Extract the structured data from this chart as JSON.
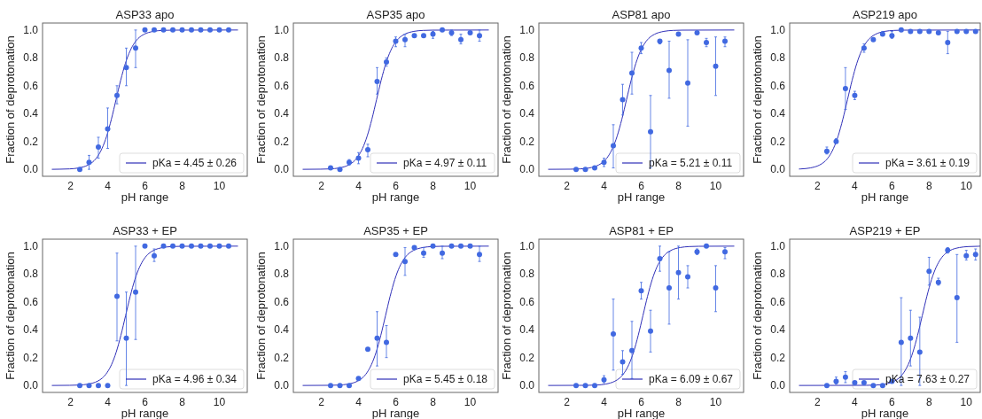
{
  "chart_data": [
    {
      "type": "scatter",
      "title": "ASP33 apo",
      "xlabel": "pH range",
      "ylabel": "Fraction of deprotonation",
      "xlim": [
        0.5,
        11.5
      ],
      "ylim": [
        -0.05,
        1.05
      ],
      "xticks": [
        2,
        4,
        6,
        8,
        10
      ],
      "yticks": [
        {
          "value": 0,
          "label": "0.0"
        },
        {
          "value": 0.2,
          "label": "0.2"
        },
        {
          "value": 0.4,
          "label": "0.4"
        },
        {
          "value": 0.6,
          "label": "0.6"
        },
        {
          "value": 0.8,
          "label": "0.8"
        },
        {
          "value": 1,
          "label": "1.0"
        }
      ],
      "legend": "bottom right",
      "series": [
        {
          "marker": "circle",
          "color": "#4169e1",
          "x": [
            2.5,
            3,
            3.5,
            4,
            4.5,
            5,
            5.5,
            6,
            6.5,
            7,
            7.5,
            8,
            8.5,
            9,
            9.5,
            10,
            10.5
          ],
          "values": [
            0,
            0.05,
            0.16,
            0.29,
            0.53,
            0.73,
            0.87,
            1,
            1,
            1,
            1,
            1,
            1,
            1,
            1,
            1,
            1
          ],
          "errors": [
            null,
            [
              0,
              0.1
            ],
            [
              0.08,
              0.23
            ],
            [
              0.15,
              0.44
            ],
            [
              0.47,
              0.6
            ],
            [
              0.6,
              0.87
            ],
            [
              0.73,
              1
            ],
            null,
            null,
            null,
            null,
            null,
            null,
            null,
            null,
            null,
            null
          ]
        },
        {
          "type": "line",
          "marker": "none",
          "name": "pKa = 4.45 ± 0.26",
          "color": "#2f2fb8",
          "x": [
            1,
            1.45,
            1.95,
            2.45,
            2.95,
            3.2,
            3.45,
            3.7,
            3.95,
            4.2,
            4.45,
            4.7,
            4.95,
            5.2,
            5.45,
            5.7,
            5.95,
            6.45,
            6.95,
            7.45,
            11
          ],
          "values": [
            0,
            0.001,
            0.003,
            0.01,
            0.031,
            0.053,
            0.091,
            0.151,
            0.24,
            0.36,
            0.5,
            0.64,
            0.76,
            0.849,
            0.909,
            0.947,
            0.969,
            0.99,
            0.997,
            0.999,
            1
          ]
        }
      ]
    },
    {
      "type": "scatter",
      "title": "ASP35 apo",
      "xlabel": "pH range",
      "ylabel": "Fraction of deprotonation",
      "xlim": [
        0.5,
        11.5
      ],
      "ylim": [
        -0.05,
        1.05
      ],
      "xticks": [
        2,
        4,
        6,
        8,
        10
      ],
      "yticks": [
        {
          "value": 0,
          "label": "0.0"
        },
        {
          "value": 0.2,
          "label": "0.2"
        },
        {
          "value": 0.4,
          "label": "0.4"
        },
        {
          "value": 0.6,
          "label": "0.6"
        },
        {
          "value": 0.8,
          "label": "0.8"
        },
        {
          "value": 1,
          "label": "1.0"
        }
      ],
      "legend": "bottom right",
      "series": [
        {
          "marker": "circle",
          "color": "#4169e1",
          "x": [
            2.5,
            3,
            3.5,
            4,
            4.5,
            5,
            5.5,
            6,
            6.5,
            7,
            7.5,
            8,
            8.5,
            9,
            9.5,
            10,
            10.5
          ],
          "values": [
            0.01,
            0,
            0.05,
            0.08,
            0.14,
            0.63,
            0.77,
            0.92,
            0.93,
            0.96,
            0.96,
            0.97,
            1,
            0.98,
            0.93,
            0.98,
            0.96
          ],
          "errors": [
            null,
            null,
            [
              0.03,
              0.07
            ],
            [
              0.04,
              0.12
            ],
            [
              0.09,
              0.18
            ],
            [
              0.54,
              0.73
            ],
            [
              0.74,
              0.8
            ],
            [
              0.88,
              0.95
            ],
            [
              0.88,
              0.97
            ],
            null,
            null,
            [
              0.94,
              0.99
            ],
            null,
            [
              0.96,
              1
            ],
            [
              0.9,
              0.97
            ],
            null,
            [
              0.92,
              1
            ]
          ]
        },
        {
          "type": "line",
          "marker": "none",
          "name": "pKa = 4.97 ± 0.11",
          "color": "#2f2fb8",
          "x": [
            1,
            1.97,
            2.47,
            2.97,
            3.47,
            3.72,
            3.97,
            4.22,
            4.47,
            4.72,
            4.97,
            5.22,
            5.47,
            5.72,
            5.97,
            6.22,
            6.47,
            6.97,
            7.47,
            7.97,
            11
          ],
          "values": [
            0,
            0.001,
            0.003,
            0.01,
            0.031,
            0.053,
            0.091,
            0.151,
            0.24,
            0.36,
            0.5,
            0.64,
            0.76,
            0.849,
            0.909,
            0.947,
            0.969,
            0.99,
            0.997,
            0.999,
            1
          ]
        }
      ]
    },
    {
      "type": "scatter",
      "title": "ASP81 apo",
      "xlabel": "pH range",
      "ylabel": "Fraction of deprotonation",
      "xlim": [
        0.5,
        11.5
      ],
      "ylim": [
        -0.05,
        1.05
      ],
      "xticks": [
        2,
        4,
        6,
        8,
        10
      ],
      "yticks": [
        {
          "value": 0,
          "label": "0.0"
        },
        {
          "value": 0.2,
          "label": "0.2"
        },
        {
          "value": 0.4,
          "label": "0.4"
        },
        {
          "value": 0.6,
          "label": "0.6"
        },
        {
          "value": 0.8,
          "label": "0.8"
        },
        {
          "value": 1,
          "label": "1.0"
        }
      ],
      "legend": "bottom right",
      "series": [
        {
          "marker": "circle",
          "color": "#4169e1",
          "x": [
            2.5,
            3,
            3.5,
            4,
            4.5,
            5,
            5.5,
            6,
            6.5,
            7,
            7.5,
            8,
            8.5,
            9,
            9.5,
            10,
            10.5
          ],
          "values": [
            0,
            0,
            0.01,
            0.05,
            0.17,
            0.5,
            0.69,
            0.87,
            0.27,
            0.92,
            0.71,
            0.97,
            0.62,
            0.98,
            0.91,
            0.74,
            0.92
          ],
          "errors": [
            null,
            null,
            null,
            [
              0.02,
              0.08
            ],
            [
              0.01,
              0.32
            ],
            [
              0.39,
              0.61
            ],
            [
              0.54,
              0.84
            ],
            [
              0.83,
              0.91
            ],
            [
              0.01,
              0.53
            ],
            [
              0.9,
              0.93
            ],
            [
              0.51,
              0.92
            ],
            null,
            [
              0.31,
              0.93
            ],
            null,
            [
              0.88,
              0.94
            ],
            [
              0.53,
              0.95
            ],
            [
              0.88,
              0.95
            ]
          ]
        },
        {
          "type": "line",
          "marker": "none",
          "name": "pKa = 5.21 ± 0.11",
          "color": "#2f2fb8",
          "x": [
            1,
            2.21,
            2.71,
            3.21,
            3.71,
            3.96,
            4.21,
            4.46,
            4.71,
            4.96,
            5.21,
            5.46,
            5.71,
            5.96,
            6.21,
            6.46,
            6.71,
            7.21,
            7.71,
            8.21,
            11
          ],
          "values": [
            0,
            0.001,
            0.003,
            0.01,
            0.031,
            0.053,
            0.091,
            0.151,
            0.24,
            0.36,
            0.5,
            0.64,
            0.76,
            0.849,
            0.909,
            0.947,
            0.969,
            0.99,
            0.997,
            0.999,
            1
          ]
        }
      ]
    },
    {
      "type": "scatter",
      "title": "ASP219 apo",
      "xlabel": "pH range",
      "ylabel": "Fraction of deprotonation",
      "xlim": [
        0.5,
        10.75
      ],
      "ylim": [
        -0.05,
        1.05
      ],
      "xticks": [
        2,
        4,
        6,
        8,
        10
      ],
      "yticks": [
        {
          "value": 0,
          "label": "0.0"
        },
        {
          "value": 0.2,
          "label": "0.2"
        },
        {
          "value": 0.4,
          "label": "0.4"
        },
        {
          "value": 0.6,
          "label": "0.6"
        },
        {
          "value": 0.8,
          "label": "0.8"
        },
        {
          "value": 1,
          "label": "1.0"
        }
      ],
      "legend": "bottom right",
      "series": [
        {
          "marker": "circle",
          "color": "#4169e1",
          "x": [
            2.5,
            3,
            3.5,
            4,
            4.5,
            5,
            5.5,
            6,
            6.5,
            7,
            7.5,
            8,
            8.5,
            9,
            9.5,
            10,
            10.5
          ],
          "values": [
            0.13,
            0.2,
            0.58,
            0.53,
            0.87,
            0.93,
            0.97,
            0.96,
            1,
            0.99,
            0.99,
            0.99,
            0.98,
            0.91,
            0.99,
            0.99,
            0.99
          ],
          "errors": [
            [
              0.11,
              0.16
            ],
            [
              0.19,
              0.22
            ],
            [
              0.43,
              0.73
            ],
            [
              0.5,
              0.56
            ],
            [
              0.84,
              0.9
            ],
            null,
            [
              0.96,
              0.99
            ],
            [
              0.94,
              0.99
            ],
            null,
            null,
            null,
            null,
            null,
            [
              0.83,
              0.99
            ],
            null,
            null,
            null
          ]
        },
        {
          "type": "line",
          "marker": "none",
          "name": "pKa = 3.61 ± 0.19",
          "color": "#2f2fb8",
          "x": [
            1,
            1.11,
            1.61,
            2.11,
            2.36,
            2.61,
            2.86,
            3.11,
            3.36,
            3.61,
            3.86,
            4.11,
            4.36,
            4.61,
            4.86,
            5.11,
            5.61,
            6.11,
            6.61,
            10.75
          ],
          "values": [
            0.002,
            0.003,
            0.01,
            0.031,
            0.053,
            0.091,
            0.151,
            0.24,
            0.36,
            0.5,
            0.64,
            0.76,
            0.849,
            0.909,
            0.947,
            0.969,
            0.99,
            0.997,
            0.999,
            1
          ]
        }
      ]
    },
    {
      "type": "scatter",
      "title": "ASP33 + EP",
      "xlabel": "pH range",
      "ylabel": "Fraction of deprotonation",
      "xlim": [
        0.5,
        11.5
      ],
      "ylim": [
        -0.05,
        1.05
      ],
      "xticks": [
        2,
        4,
        6,
        8,
        10
      ],
      "yticks": [
        {
          "value": 0,
          "label": "0.0"
        },
        {
          "value": 0.2,
          "label": "0.2"
        },
        {
          "value": 0.4,
          "label": "0.4"
        },
        {
          "value": 0.6,
          "label": "0.6"
        },
        {
          "value": 0.8,
          "label": "0.8"
        },
        {
          "value": 1,
          "label": "1.0"
        }
      ],
      "legend": "bottom right",
      "series": [
        {
          "marker": "circle",
          "color": "#4169e1",
          "x": [
            2.5,
            3,
            3.5,
            4,
            4.5,
            5,
            5.5,
            6,
            6.5,
            7,
            7.5,
            8,
            8.5,
            9,
            9.5,
            10,
            10.5
          ],
          "values": [
            0,
            0,
            0,
            0,
            0.64,
            0.34,
            0.67,
            1,
            0.93,
            1,
            1,
            1,
            1,
            1,
            1,
            1,
            1
          ],
          "errors": [
            null,
            null,
            null,
            null,
            [
              0.32,
              0.95
            ],
            [
              0,
              0.67
            ],
            [
              0.33,
              1
            ],
            null,
            [
              0.89,
              0.98
            ],
            null,
            null,
            null,
            null,
            null,
            null,
            null,
            null
          ]
        },
        {
          "type": "line",
          "marker": "none",
          "name": "pKa = 4.96 ± 0.34",
          "color": "#2f2fb8",
          "x": [
            1,
            1.96,
            2.46,
            2.96,
            3.46,
            3.71,
            3.96,
            4.21,
            4.46,
            4.71,
            4.96,
            5.21,
            5.46,
            5.71,
            5.96,
            6.21,
            6.46,
            6.96,
            7.46,
            7.96,
            11
          ],
          "values": [
            0,
            0.001,
            0.003,
            0.01,
            0.031,
            0.053,
            0.091,
            0.151,
            0.24,
            0.36,
            0.5,
            0.64,
            0.76,
            0.849,
            0.909,
            0.947,
            0.969,
            0.99,
            0.997,
            0.999,
            1
          ]
        }
      ]
    },
    {
      "type": "scatter",
      "title": "ASP35 + EP",
      "xlabel": "pH range",
      "ylabel": "Fraction of deprotonation",
      "xlim": [
        0.5,
        11.5
      ],
      "ylim": [
        -0.05,
        1.05
      ],
      "xticks": [
        2,
        4,
        6,
        8,
        10
      ],
      "yticks": [
        {
          "value": 0,
          "label": "0.0"
        },
        {
          "value": 0.2,
          "label": "0.2"
        },
        {
          "value": 0.4,
          "label": "0.4"
        },
        {
          "value": 0.6,
          "label": "0.6"
        },
        {
          "value": 0.8,
          "label": "0.8"
        },
        {
          "value": 1,
          "label": "1.0"
        }
      ],
      "legend": "bottom right",
      "series": [
        {
          "marker": "circle",
          "color": "#4169e1",
          "x": [
            2.5,
            3,
            3.5,
            4,
            4.5,
            5,
            5.5,
            6,
            6.5,
            7,
            7.5,
            8,
            8.5,
            9,
            9.5,
            10,
            10.5
          ],
          "values": [
            0,
            0,
            0,
            0.05,
            0.26,
            0.34,
            0.31,
            0.94,
            0.89,
            0.99,
            0.95,
            1,
            0.95,
            1,
            1,
            1,
            0.94
          ],
          "errors": [
            null,
            null,
            null,
            null,
            null,
            [
              0.14,
              0.53
            ],
            [
              0.2,
              0.43
            ],
            null,
            [
              0.79,
              0.99
            ],
            null,
            [
              0.92,
              0.99
            ],
            null,
            [
              0.91,
              1
            ],
            null,
            null,
            null,
            [
              0.89,
              1
            ]
          ]
        },
        {
          "type": "line",
          "marker": "none",
          "name": "pKa = 5.45 ± 0.18",
          "color": "#2f2fb8",
          "x": [
            1,
            2.45,
            2.95,
            3.45,
            3.95,
            4.2,
            4.45,
            4.7,
            4.95,
            5.2,
            5.45,
            5.7,
            5.95,
            6.2,
            6.45,
            6.7,
            6.95,
            7.45,
            7.95,
            8.45,
            11
          ],
          "values": [
            0,
            0.001,
            0.003,
            0.01,
            0.031,
            0.053,
            0.091,
            0.151,
            0.24,
            0.36,
            0.5,
            0.64,
            0.76,
            0.849,
            0.909,
            0.947,
            0.969,
            0.99,
            0.997,
            0.999,
            1
          ]
        }
      ]
    },
    {
      "type": "scatter",
      "title": "ASP81 + EP",
      "xlabel": "pH range",
      "ylabel": "Fraction of deprotonation",
      "xlim": [
        0.5,
        11.5
      ],
      "ylim": [
        -0.05,
        1.05
      ],
      "xticks": [
        2,
        4,
        6,
        8,
        10
      ],
      "yticks": [
        {
          "value": 0,
          "label": "0.0"
        },
        {
          "value": 0.2,
          "label": "0.2"
        },
        {
          "value": 0.4,
          "label": "0.4"
        },
        {
          "value": 0.6,
          "label": "0.6"
        },
        {
          "value": 0.8,
          "label": "0.8"
        },
        {
          "value": 1,
          "label": "1.0"
        }
      ],
      "legend": "bottom right",
      "series": [
        {
          "marker": "circle",
          "color": "#4169e1",
          "x": [
            2.5,
            3,
            3.5,
            4,
            4.5,
            5,
            5.5,
            6,
            6.5,
            7,
            7.5,
            8,
            8.5,
            9,
            9.5,
            10,
            10.5
          ],
          "values": [
            0,
            0,
            0,
            0.04,
            0.37,
            0.17,
            0.25,
            0.68,
            0.39,
            0.91,
            0.7,
            0.81,
            0.78,
            0.96,
            1,
            0.7,
            0.96
          ],
          "errors": [
            null,
            null,
            null,
            [
              0.02,
              0.07
            ],
            [
              0.11,
              0.62
            ],
            [
              0.08,
              0.25
            ],
            [
              0.05,
              0.46
            ],
            [
              0.62,
              0.74
            ],
            [
              0.24,
              0.54
            ],
            [
              0.82,
              1
            ],
            [
              0.44,
              0.96
            ],
            [
              0.62,
              1
            ],
            [
              0.7,
              0.86
            ],
            [
              0.94,
              0.98
            ],
            null,
            [
              0.53,
              0.86
            ],
            [
              0.91,
              0.99
            ]
          ]
        },
        {
          "type": "line",
          "marker": "none",
          "name": "pKa = 6.09 ± 0.67",
          "color": "#2f2fb8",
          "x": [
            1,
            3.09,
            3.59,
            4.09,
            4.59,
            4.84,
            5.09,
            5.34,
            5.59,
            5.84,
            6.09,
            6.34,
            6.59,
            6.84,
            7.09,
            7.34,
            7.59,
            8.09,
            8.59,
            9.09,
            11
          ],
          "values": [
            0,
            0.001,
            0.003,
            0.01,
            0.031,
            0.053,
            0.091,
            0.151,
            0.24,
            0.36,
            0.5,
            0.64,
            0.76,
            0.849,
            0.909,
            0.947,
            0.969,
            0.99,
            0.997,
            0.999,
            1
          ]
        }
      ]
    },
    {
      "type": "scatter",
      "title": "ASP219 + EP",
      "xlabel": "pH range",
      "ylabel": "Fraction of deprotonation",
      "xlim": [
        0.5,
        10.75
      ],
      "ylim": [
        -0.05,
        1.05
      ],
      "xticks": [
        2,
        4,
        6,
        8,
        10
      ],
      "yticks": [
        {
          "value": 0,
          "label": "0.0"
        },
        {
          "value": 0.2,
          "label": "0.2"
        },
        {
          "value": 0.4,
          "label": "0.4"
        },
        {
          "value": 0.6,
          "label": "0.6"
        },
        {
          "value": 0.8,
          "label": "0.8"
        },
        {
          "value": 1,
          "label": "1.0"
        }
      ],
      "legend": "bottom right",
      "series": [
        {
          "marker": "circle",
          "color": "#4169e1",
          "x": [
            2.5,
            3,
            3.5,
            4,
            4.5,
            5,
            5.5,
            6,
            6.5,
            7,
            7.5,
            8,
            8.5,
            9,
            9.5,
            10,
            10.5
          ],
          "values": [
            0,
            0.03,
            0.06,
            0.02,
            0.02,
            0,
            0,
            0.03,
            0.31,
            0.34,
            0.24,
            0.82,
            0.74,
            0.97,
            0.63,
            0.93,
            0.94
          ],
          "errors": [
            null,
            [
              0.01,
              0.06
            ],
            [
              0.02,
              0.1
            ],
            null,
            null,
            null,
            null,
            null,
            [
              0,
              0.63
            ],
            [
              0.14,
              0.54
            ],
            [
              0,
              0.49
            ],
            [
              0.72,
              0.92
            ],
            [
              0.72,
              0.77
            ],
            [
              0.95,
              0.99
            ],
            [
              0.31,
              0.94
            ],
            [
              0.9,
              0.97
            ],
            [
              0.9,
              0.98
            ]
          ]
        },
        {
          "type": "line",
          "marker": "none",
          "name": "pKa = 7.63 ± 0.27",
          "color": "#2f2fb8",
          "x": [
            1,
            4.63,
            5.13,
            5.63,
            6.13,
            6.38,
            6.63,
            6.88,
            7.13,
            7.38,
            7.63,
            7.88,
            8.13,
            8.38,
            8.63,
            8.88,
            9.13,
            9.63,
            10.13,
            10.63,
            10.75
          ],
          "values": [
            0,
            0.001,
            0.003,
            0.01,
            0.031,
            0.053,
            0.091,
            0.151,
            0.24,
            0.36,
            0.5,
            0.64,
            0.76,
            0.849,
            0.909,
            0.947,
            0.969,
            0.99,
            0.997,
            0.999,
            1
          ]
        }
      ]
    }
  ]
}
